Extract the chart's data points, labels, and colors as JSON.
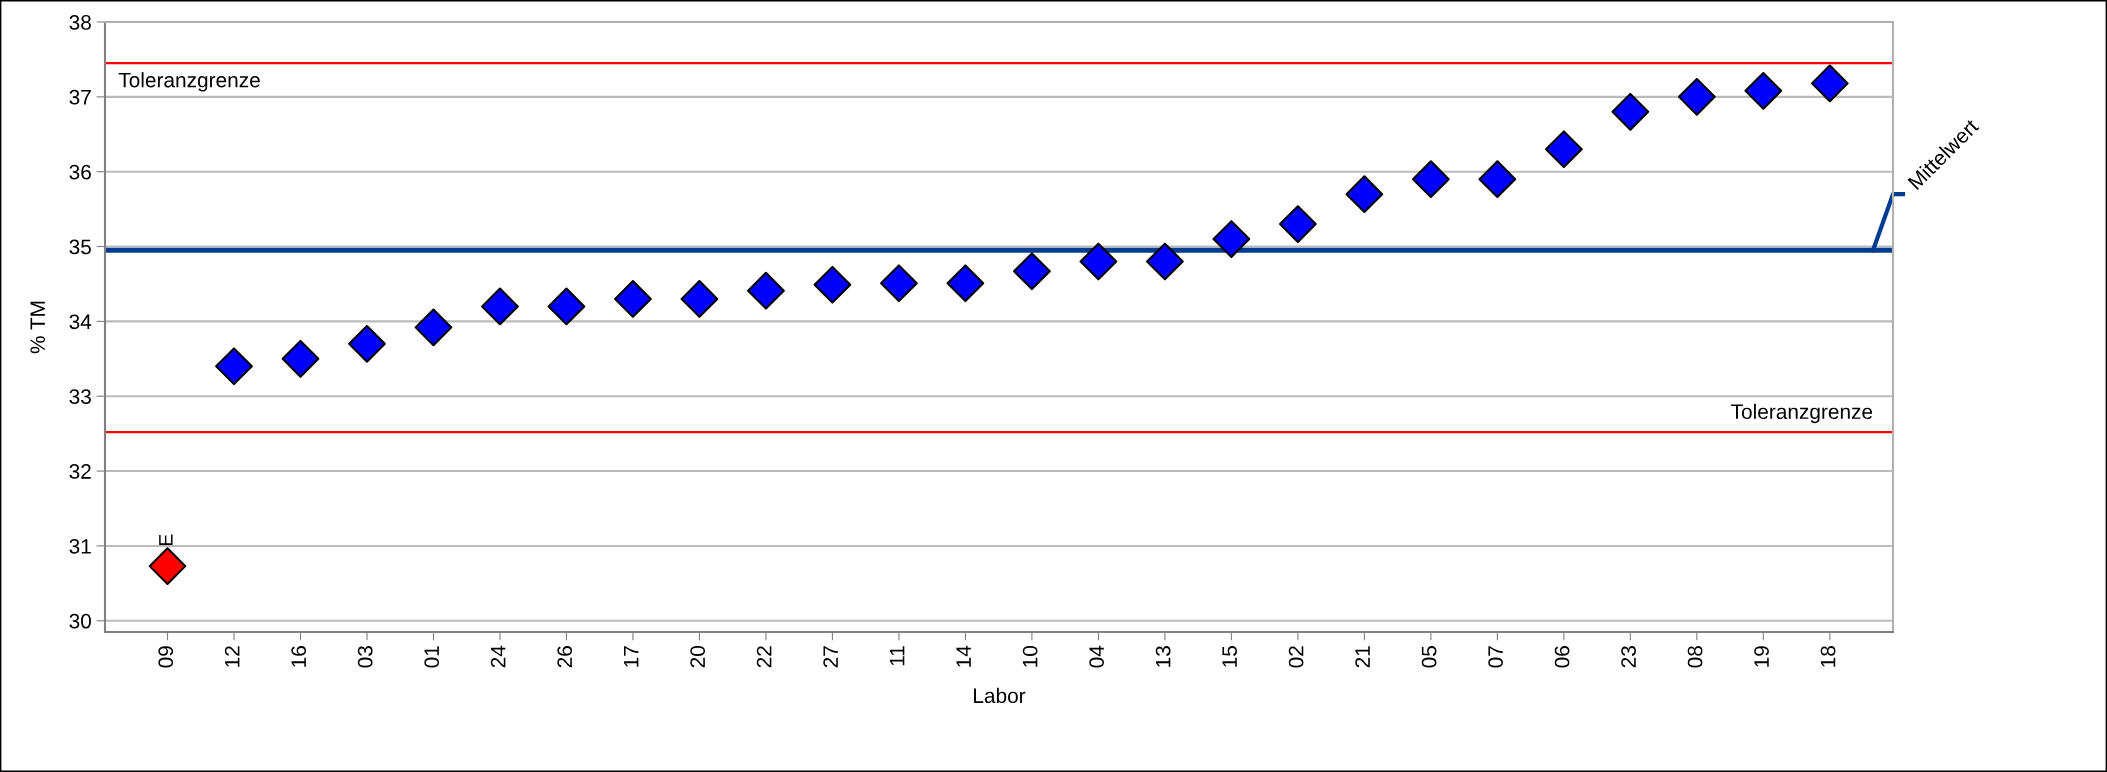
{
  "chart_data": {
    "type": "scatter",
    "xlabel": "Labor",
    "ylabel": "% TM",
    "categories": [
      "09",
      "12",
      "16",
      "03",
      "01",
      "24",
      "26",
      "17",
      "20",
      "22",
      "27",
      "11",
      "14",
      "10",
      "04",
      "13",
      "15",
      "02",
      "21",
      "05",
      "07",
      "06",
      "23",
      "08",
      "19",
      "18"
    ],
    "series": [
      {
        "marker": "diamond",
        "values": [
          30.73,
          33.4,
          33.5,
          33.7,
          33.92,
          34.2,
          34.2,
          34.3,
          34.3,
          34.41,
          34.49,
          34.51,
          34.51,
          34.67,
          34.8,
          34.8,
          35.1,
          35.3,
          35.7,
          35.9,
          35.9,
          36.3,
          36.8,
          37.0,
          37.08,
          37.18
        ],
        "colors": [
          "#ff0000",
          "#0000ff",
          "#0000ff",
          "#0000ff",
          "#0000ff",
          "#0000ff",
          "#0000ff",
          "#0000ff",
          "#0000ff",
          "#0000ff",
          "#0000ff",
          "#0000ff",
          "#0000ff",
          "#0000ff",
          "#0000ff",
          "#0000ff",
          "#0000ff",
          "#0000ff",
          "#0000ff",
          "#0000ff",
          "#0000ff",
          "#0000ff",
          "#0000ff",
          "#0000ff",
          "#0000ff",
          "#0000ff"
        ]
      }
    ],
    "ylim": [
      29.85,
      38
    ],
    "yticks": [
      30,
      31,
      32,
      33,
      34,
      35,
      36,
      37,
      38
    ],
    "grid": "y",
    "ref_lines": [
      {
        "axis": "y",
        "value": 37.45,
        "label": "Toleranzgrenze",
        "color": "#ff0000"
      },
      {
        "axis": "y",
        "value": 32.52,
        "label": "Toleranzgrenze",
        "color": "#ff0000"
      },
      {
        "axis": "y",
        "value": 34.95,
        "label": "Mittelwert",
        "color": "#003c8f"
      }
    ],
    "annotations": [
      {
        "text": "E",
        "x": "09",
        "y": 30.73
      }
    ]
  }
}
